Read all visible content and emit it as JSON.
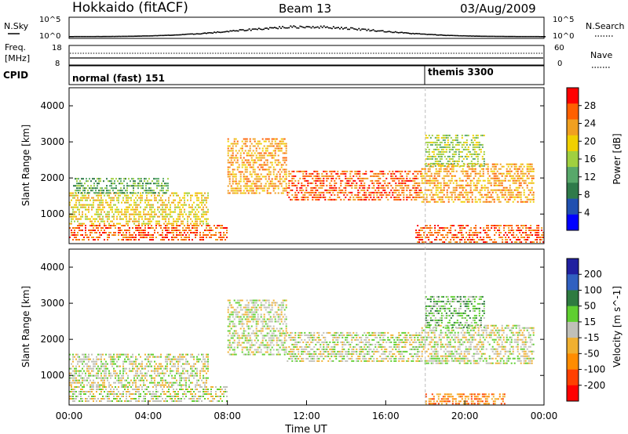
{
  "header": {
    "station": "Hokkaido (fitACF)",
    "beam": "Beam 13",
    "date": "03/Aug/2009"
  },
  "left_labels": {
    "nsky": "N.Sky",
    "freq_line1": "Freq.",
    "freq_line2": "[MHz]",
    "cpid": "CPID"
  },
  "right_labels": {
    "nsearch": "N.Search",
    "nave": "Nave"
  },
  "noise_axis": {
    "left_top": "10^5",
    "left_bottom": "10^0",
    "right_top": "10^5",
    "right_bottom": "10^0"
  },
  "freq_axis": {
    "left_top": "18",
    "left_bottom": "8",
    "right_top": "60",
    "right_bottom": "0"
  },
  "cpid_segments": [
    {
      "label": "normal (fast) 151",
      "start_hour": 0
    },
    {
      "label": "themis 3300",
      "start_hour": 18
    }
  ],
  "colors": {
    "power_scale": [
      "#0000ff",
      "#2050b0",
      "#2f7a4a",
      "#58a86a",
      "#a0d040",
      "#f0d000",
      "#f0a020",
      "#ff6000",
      "#ff0000"
    ],
    "velocity_scale": [
      "#2020a0",
      "#3060c0",
      "#2e7b40",
      "#5fcf30",
      "#c0c0b8",
      "#f0b030",
      "#ff8c00",
      "#ff4000",
      "#ff0000"
    ]
  },
  "chart_data": [
    {
      "type": "heatmap",
      "name": "power",
      "ylabel": "Slant Range [km]",
      "yticks": [
        1000,
        2000,
        3000,
        4000
      ],
      "ylim": [
        180,
        4500
      ],
      "xlim": [
        0,
        24
      ],
      "colorbar": {
        "label": "Power [dB]",
        "ticks": [
          "28",
          "24",
          "20",
          "16",
          "12",
          "8",
          "4"
        ]
      },
      "echo_bands": [
        {
          "t0": 0,
          "t1": 8,
          "r0": 250,
          "r1": 700,
          "value": 28
        },
        {
          "t0": 0,
          "t1": 7,
          "r0": 700,
          "r1": 1600,
          "value": 20
        },
        {
          "t0": 0.2,
          "t1": 5,
          "r0": 1550,
          "r1": 2000,
          "value": 12
        },
        {
          "t0": 8,
          "t1": 11,
          "r0": 1600,
          "r1": 3100,
          "value": 22
        },
        {
          "t0": 11,
          "t1": 17.8,
          "r0": 1400,
          "r1": 2200,
          "value": 26
        },
        {
          "t0": 17.8,
          "t1": 23.5,
          "r0": 1300,
          "r1": 2400,
          "value": 24
        },
        {
          "t0": 17.5,
          "t1": 24,
          "r0": 200,
          "r1": 700,
          "value": 28
        },
        {
          "t0": 18,
          "t1": 21,
          "r0": 2300,
          "r1": 3200,
          "value": 14
        }
      ]
    },
    {
      "type": "heatmap",
      "name": "velocity",
      "xlabel": "Time UT",
      "ylabel": "Slant Range [km]",
      "xticks": [
        "00:00",
        "04:00",
        "08:00",
        "12:00",
        "16:00",
        "20:00",
        "00:00"
      ],
      "yticks": [
        1000,
        2000,
        3000,
        4000
      ],
      "ylim": [
        180,
        4500
      ],
      "xlim": [
        0,
        24
      ],
      "colorbar": {
        "label": "Velocity [m s^-1]",
        "ticks": [
          "200",
          "100",
          "50",
          "15",
          "-15",
          "-50",
          "-100",
          "-200"
        ]
      },
      "echo_bands": [
        {
          "t0": 0,
          "t1": 8,
          "r0": 250,
          "r1": 700,
          "value": 0
        },
        {
          "t0": 0,
          "t1": 7,
          "r0": 700,
          "r1": 1600,
          "value": 0
        },
        {
          "t0": 8,
          "t1": 11,
          "r0": 1600,
          "r1": 3100,
          "value": 0
        },
        {
          "t0": 11,
          "t1": 17.8,
          "r0": 1400,
          "r1": 2200,
          "value": 0
        },
        {
          "t0": 17.8,
          "t1": 23.5,
          "r0": 1300,
          "r1": 2400,
          "value": 0
        },
        {
          "t0": 18,
          "t1": 22,
          "r0": 200,
          "r1": 500,
          "value": -60
        },
        {
          "t0": 18,
          "t1": 21,
          "r0": 2300,
          "r1": 3200,
          "value": 30
        }
      ]
    }
  ]
}
